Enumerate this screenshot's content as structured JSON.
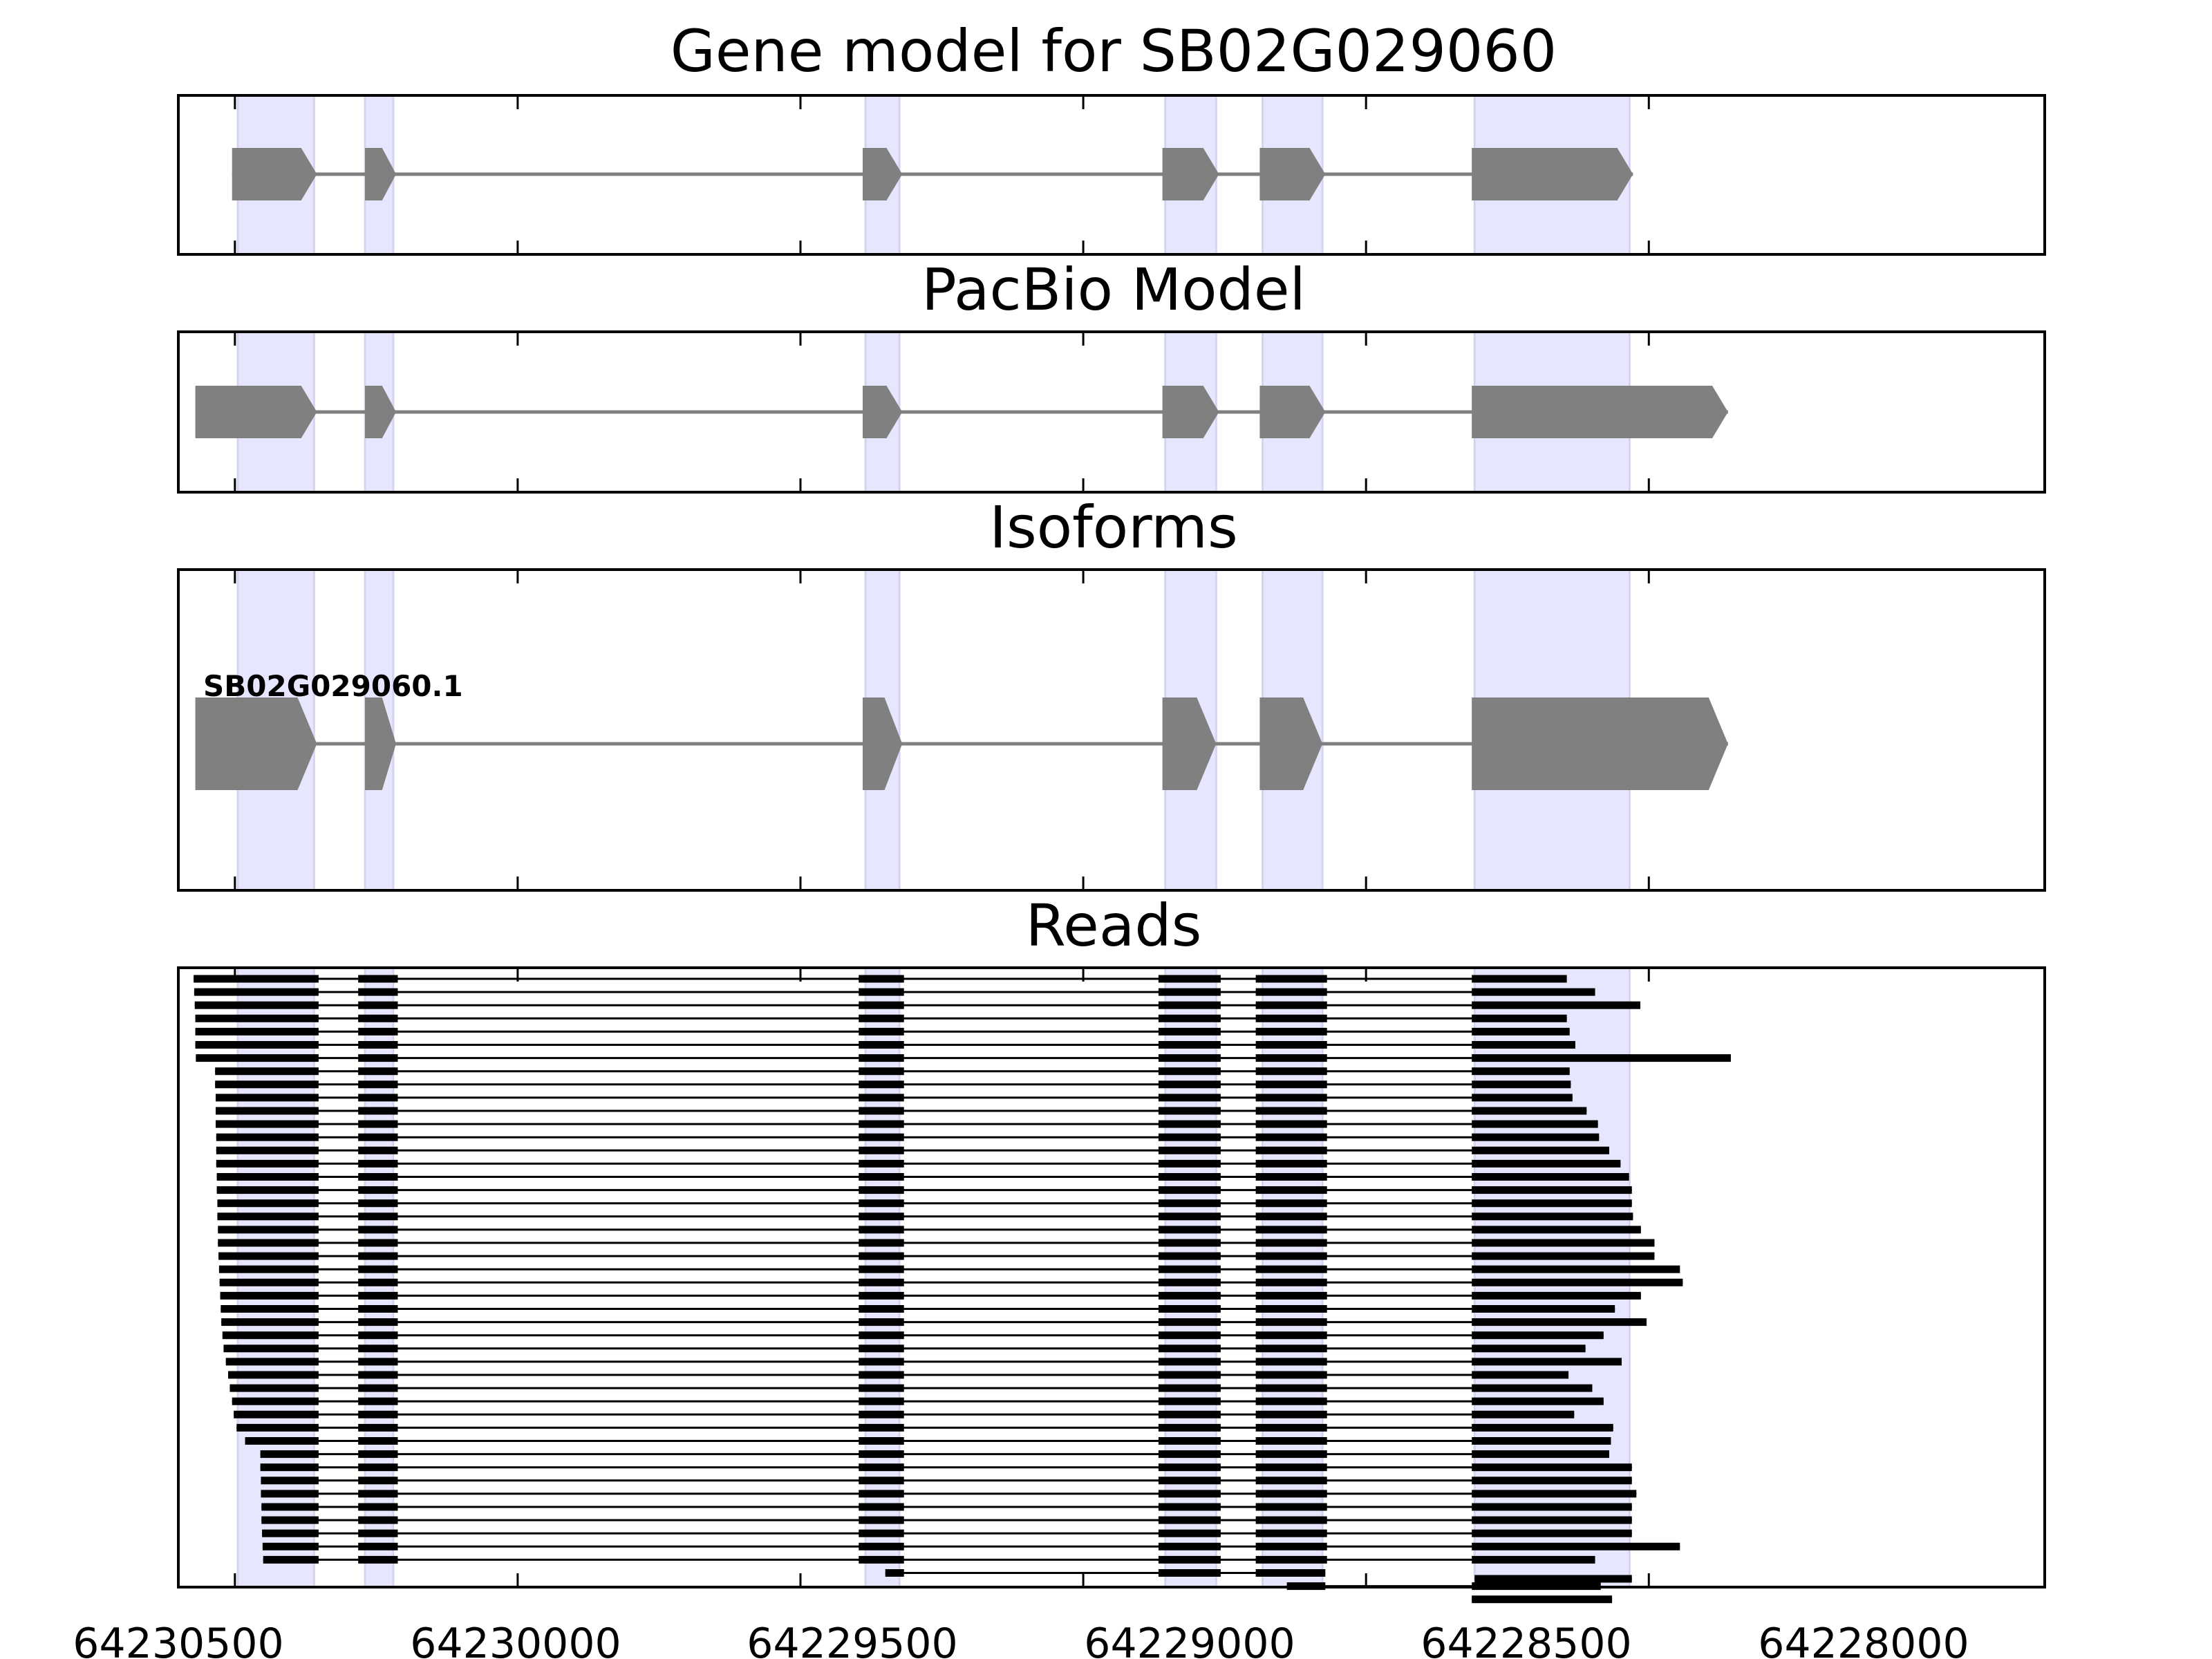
{
  "chart_data": {
    "type": "gene_structure",
    "x_axis": {
      "reversed": true,
      "xlim": [
        64230600,
        64227300
      ],
      "ticks": [
        64230500,
        64230000,
        64229500,
        64229000,
        64228500,
        64228000
      ],
      "tick_labels": [
        "64230500",
        "64230000",
        "64229500",
        "64229000",
        "64228500",
        "64228000"
      ]
    },
    "colors": {
      "exon": "#808080",
      "intron": "#808080",
      "highlight": "#e6e6ff",
      "read": "#000000",
      "frame": "#000000"
    },
    "highlight_regions": [
      [
        64230495,
        64230360
      ],
      [
        64230270,
        64230220
      ],
      [
        64229385,
        64229325
      ],
      [
        64228855,
        64228765
      ],
      [
        64228683,
        64228577
      ],
      [
        64228308,
        64228034
      ]
    ],
    "panels": [
      {
        "id": "gene-model",
        "title": "Gene model for SB02G029060",
        "models": [
          {
            "exons": [
              [
                64230505,
                64230355
              ],
              [
                64230270,
                64230215
              ],
              [
                64229390,
                64229320
              ],
              [
                64228860,
                64228760
              ],
              [
                64228688,
                64228572
              ],
              [
                64228313,
                64228028
              ]
            ]
          }
        ]
      },
      {
        "id": "pacbio-model",
        "title": "PacBio Model",
        "models": [
          {
            "exons": [
              [
                64230570,
                64230355
              ],
              [
                64230270,
                64230215
              ],
              [
                64229390,
                64229320
              ],
              [
                64228860,
                64228760
              ],
              [
                64228688,
                64228572
              ],
              [
                64228313,
                64227860
              ]
            ]
          }
        ]
      },
      {
        "id": "isoforms",
        "title": "Isoforms",
        "models": [
          {
            "name": "SB02G029060.1",
            "exons": [
              [
                64230570,
                64230355
              ],
              [
                64230270,
                64230215
              ],
              [
                64229390,
                64229320
              ],
              [
                64228860,
                64228765
              ],
              [
                64228688,
                64228577
              ],
              [
                64228313,
                64227860
              ]
            ]
          }
        ]
      },
      {
        "id": "reads",
        "title": "Reads",
        "introns_drawn": true
      }
    ],
    "reads": {
      "full": [
        [
          64230573,
          64228145
        ],
        [
          64230572,
          64228095
        ],
        [
          64230571,
          64228015
        ],
        [
          64230570,
          64228145
        ],
        [
          64230570,
          64228140
        ],
        [
          64230570,
          64228130
        ],
        [
          64230569,
          64227855
        ],
        [
          64230535,
          64228140
        ],
        [
          64230535,
          64228138
        ],
        [
          64230534,
          64228135
        ],
        [
          64230534,
          64228110
        ],
        [
          64230534,
          64228090
        ],
        [
          64230533,
          64228088
        ],
        [
          64230533,
          64228070
        ],
        [
          64230533,
          64228050
        ],
        [
          64230532,
          64228035
        ],
        [
          64230532,
          64228030
        ],
        [
          64230531,
          64228030
        ],
        [
          64230531,
          64228028
        ],
        [
          64230530,
          64228014
        ],
        [
          64230530,
          64227990
        ],
        [
          64230529,
          64227990
        ],
        [
          64230528,
          64227945
        ],
        [
          64230527,
          64227940
        ],
        [
          64230526,
          64228014
        ],
        [
          64230525,
          64228060
        ],
        [
          64230524,
          64228004
        ],
        [
          64230522,
          64228080
        ],
        [
          64230520,
          64228112
        ],
        [
          64230516,
          64228048
        ],
        [
          64230512,
          64228142
        ],
        [
          64230509,
          64228100
        ],
        [
          64230505,
          64228080
        ],
        [
          64230502,
          64228132
        ],
        [
          64230497,
          64228063
        ],
        [
          64230482,
          64228067
        ],
        [
          64230455,
          64228070
        ],
        [
          64230455,
          64228030
        ],
        [
          64230454,
          64228030
        ],
        [
          64230454,
          64228022
        ],
        [
          64230453,
          64228030
        ],
        [
          64230453,
          64228030
        ],
        [
          64230452,
          64228030
        ],
        [
          64230451,
          64227945
        ],
        [
          64230450,
          64228095
        ]
      ],
      "partial": [
        [
          64229350,
          64228700,
          64228572
        ],
        [
          64228640,
          64228572,
          64228313,
          64228085
        ],
        [
          64228313,
          64228065
        ],
        [
          64228308,
          64228030
        ]
      ]
    }
  }
}
